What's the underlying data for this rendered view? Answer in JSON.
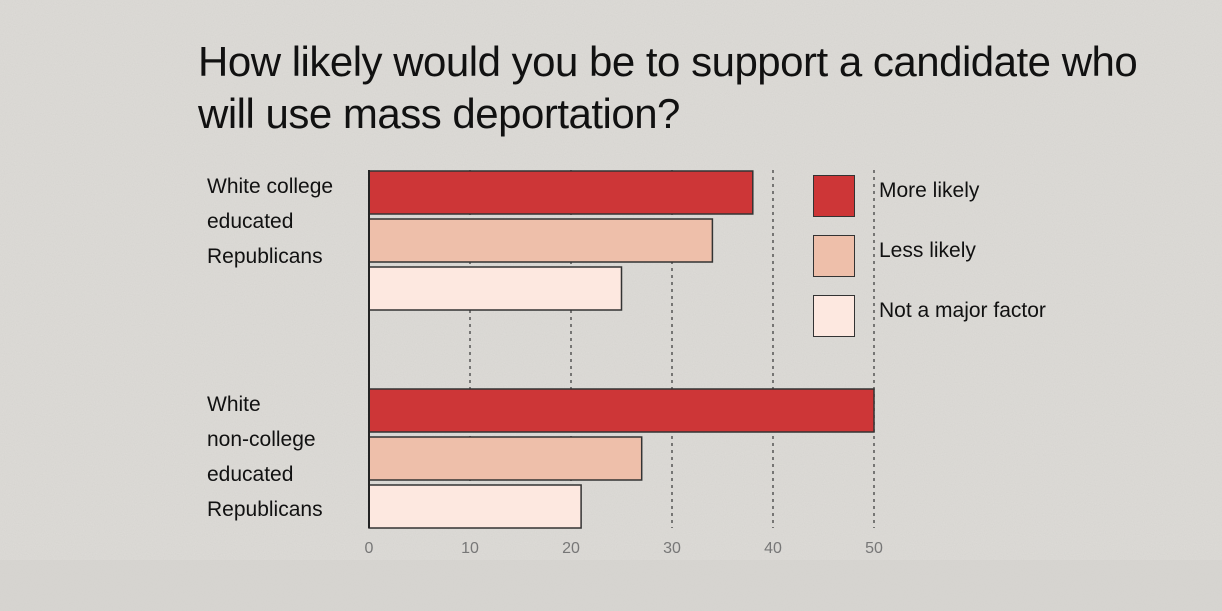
{
  "chart_data": {
    "type": "bar",
    "orientation": "horizontal",
    "title": "How likely would you be to support a candidate who will use mass deportation?",
    "categories": [
      "White college educated Republicans",
      "White non-college educated Republicans"
    ],
    "category_label_lines": [
      [
        "White college",
        "educated",
        "Republicans"
      ],
      [
        "White",
        "non-college",
        "educated",
        "Republicans"
      ]
    ],
    "series": [
      {
        "name": "More likely",
        "color": "#cd3637",
        "values": [
          38,
          50
        ]
      },
      {
        "name": "Less likely",
        "color": "#eebfaa",
        "values": [
          34,
          27
        ]
      },
      {
        "name": "Not a major factor",
        "color": "#fde8e0",
        "values": [
          25,
          21
        ]
      }
    ],
    "xlim": [
      0,
      50
    ],
    "xticks": [
      0,
      10,
      20,
      30,
      40,
      50
    ],
    "grid": "vertical dotted",
    "legend_position": "top-right"
  }
}
